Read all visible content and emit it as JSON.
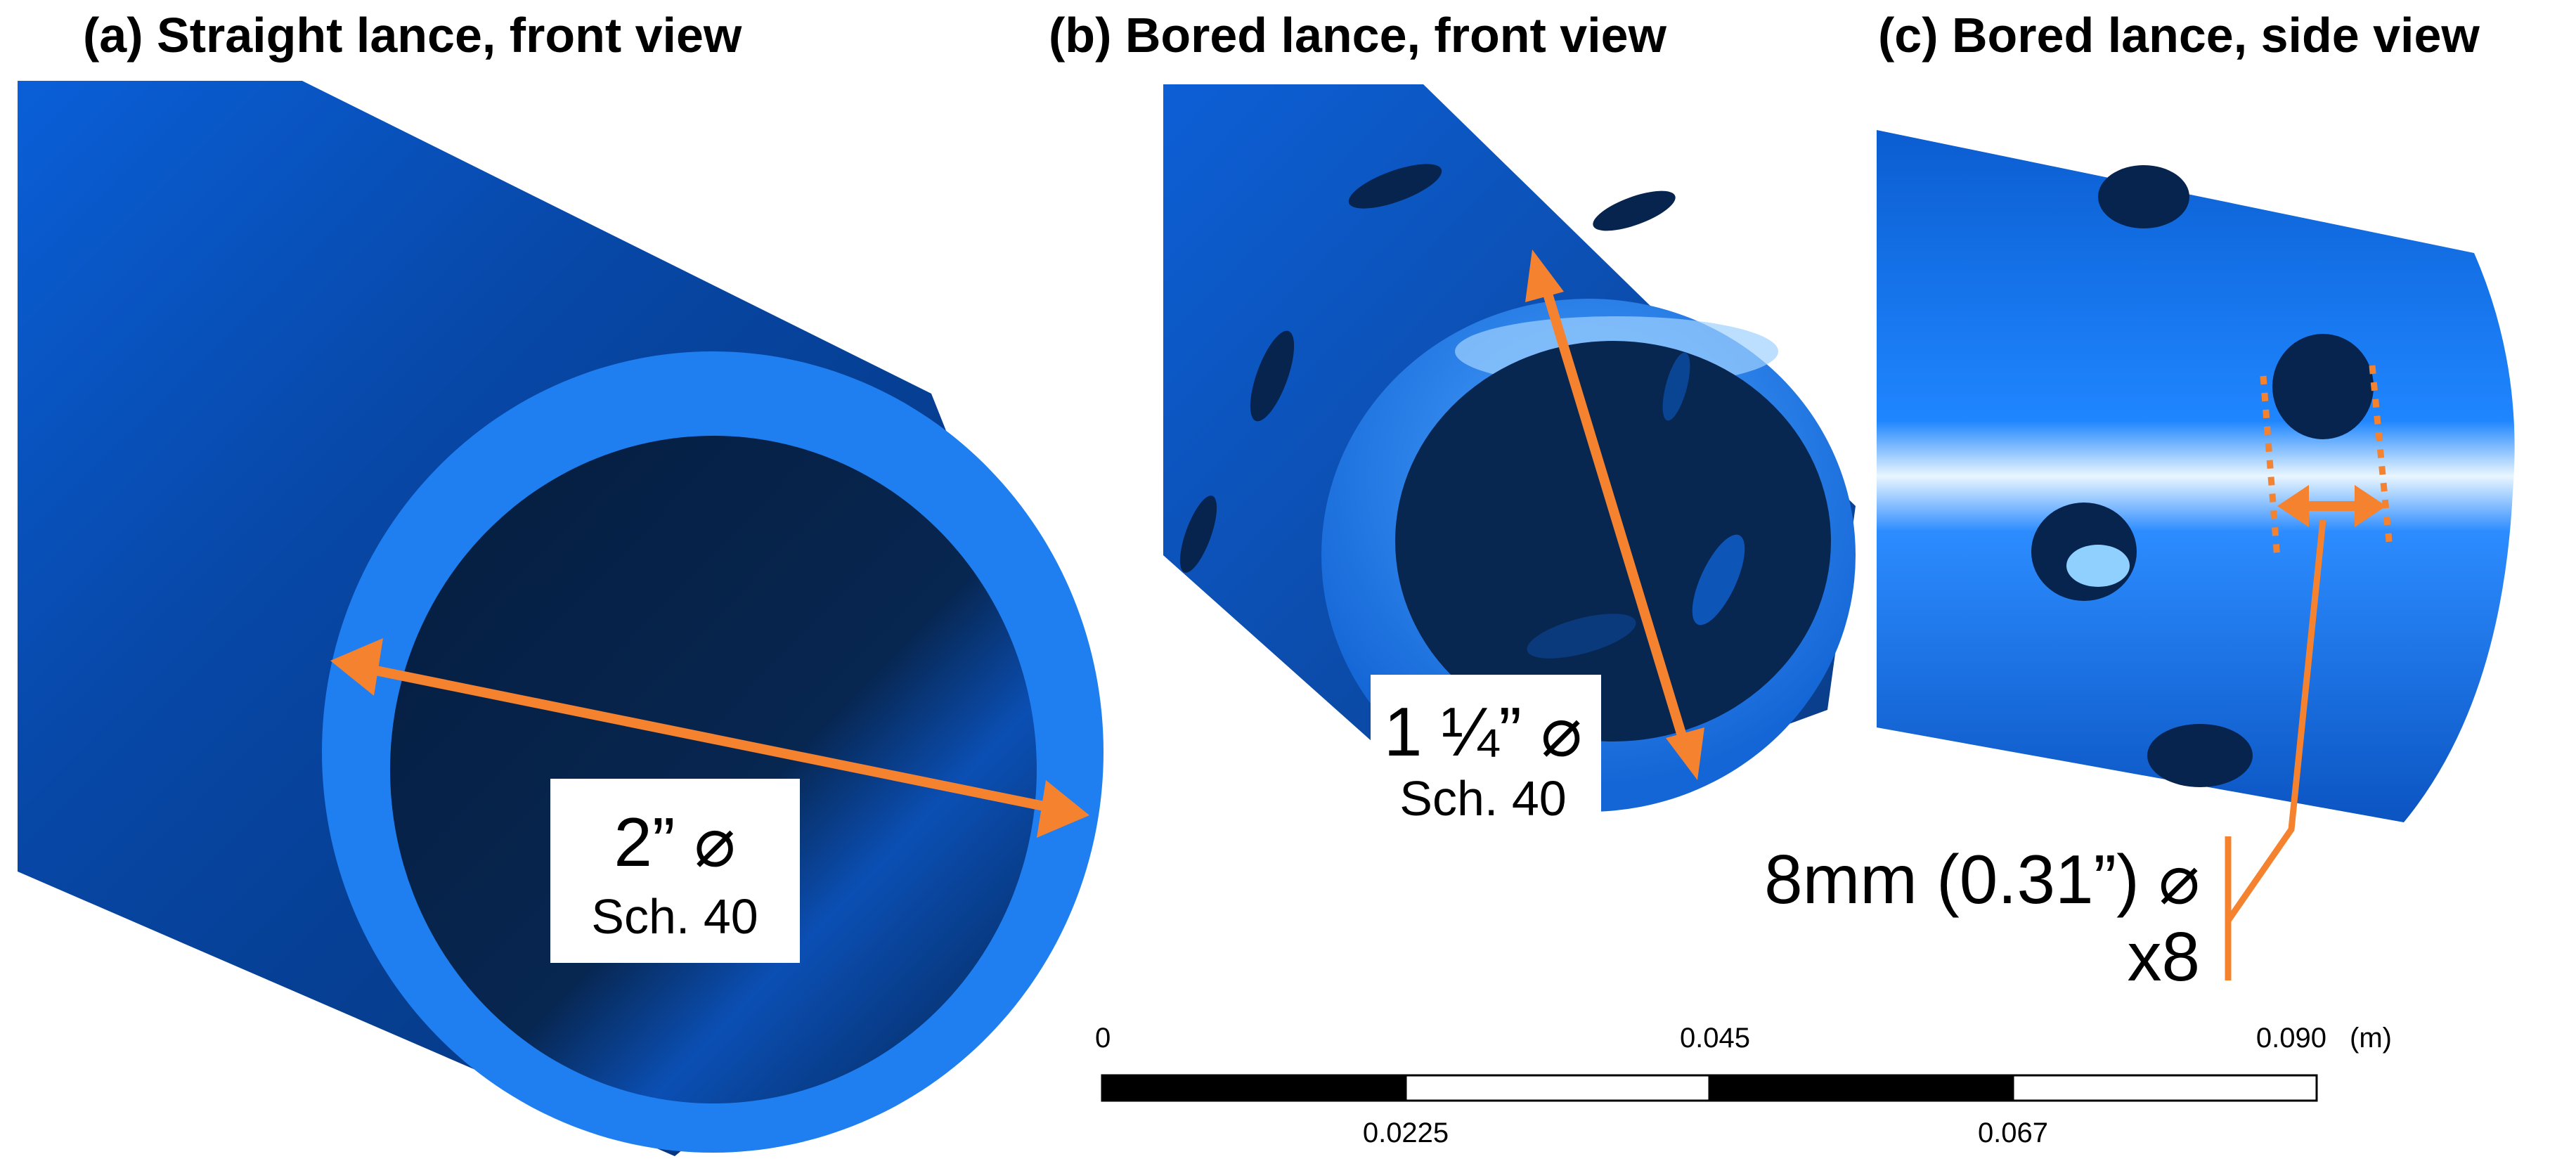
{
  "panels": [
    {
      "title": "(a) Straight lance, front view",
      "diameter": "2” ⌀",
      "schedule": "Sch. 40"
    },
    {
      "title": "(b) Bored lance, front view",
      "diameter": "1 ¼” ⌀",
      "schedule": "Sch. 40"
    },
    {
      "title": "(c) Bored lance, side view",
      "hole_size": "8mm (0.31”) ⌀",
      "hole_count": "x8"
    }
  ],
  "scale_bar": {
    "top_labels": [
      "0",
      "0.045",
      "0.090"
    ],
    "unit": "(m)",
    "bottom_labels": [
      "0.0225",
      "0.067"
    ]
  },
  "colors": {
    "pipe_light": "#1f7ff0",
    "pipe_dark": "#082a55",
    "annotation": "#f5822f"
  }
}
